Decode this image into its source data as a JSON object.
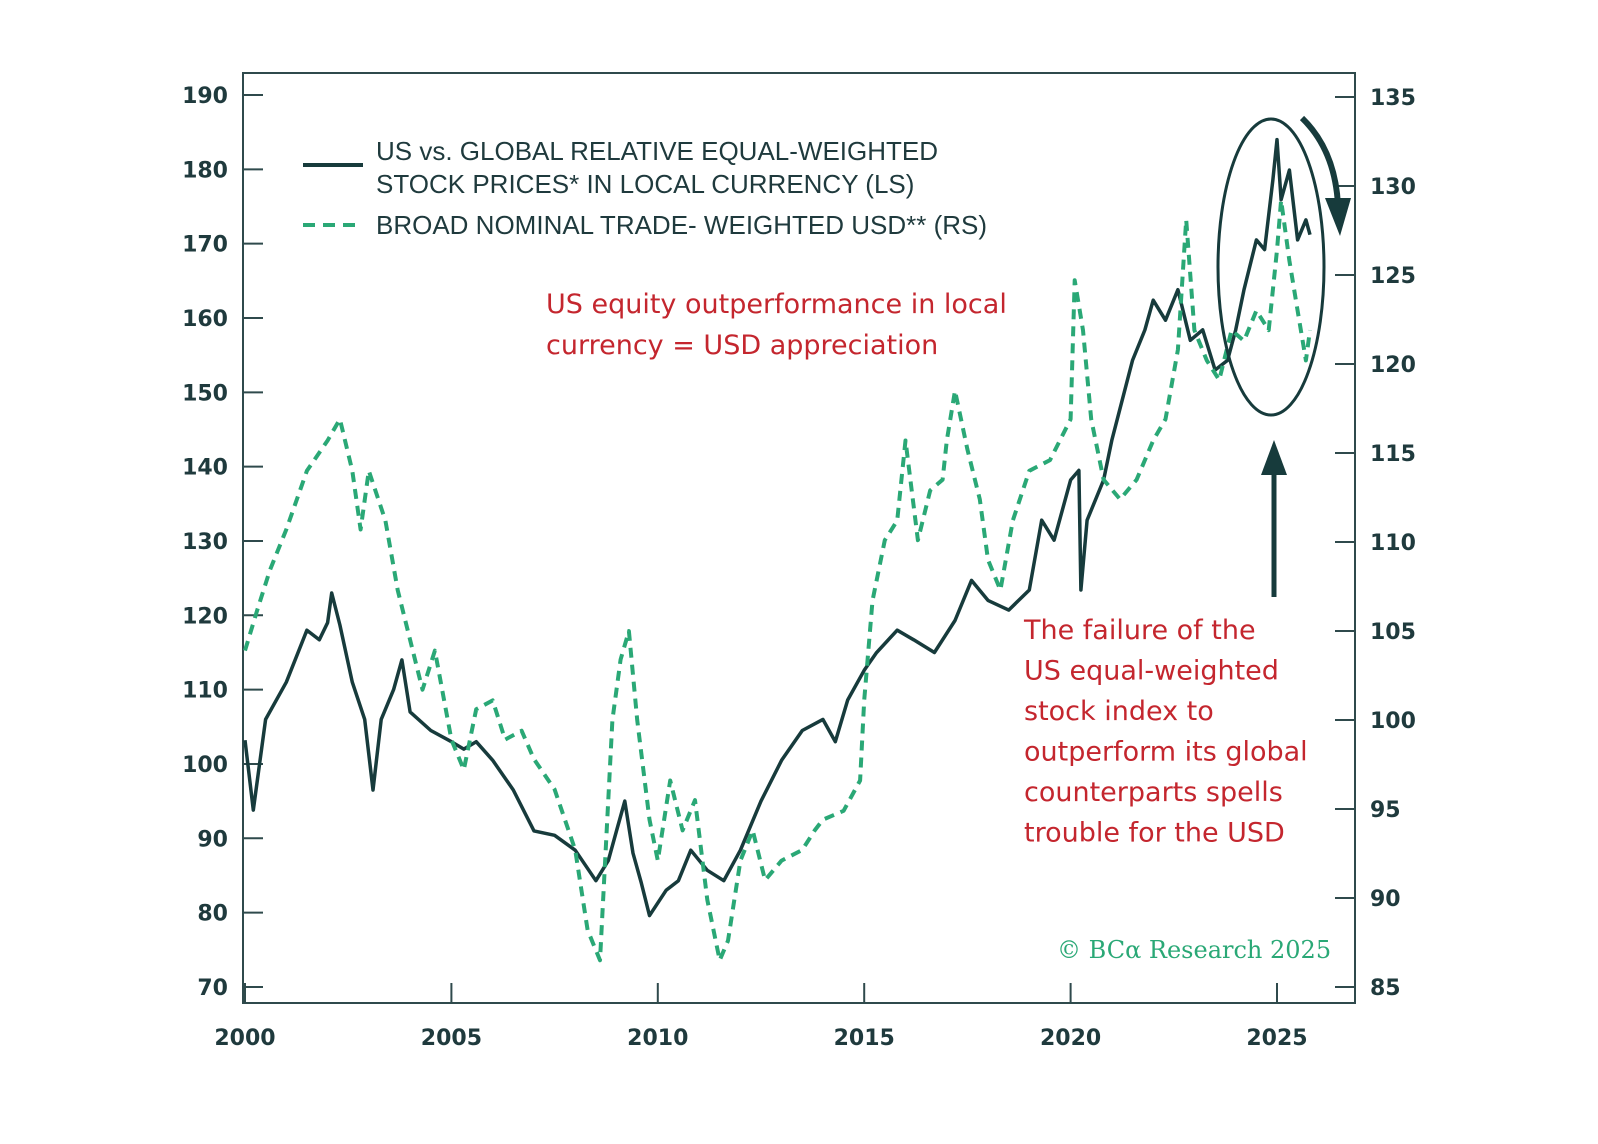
{
  "chart_data": {
    "type": "line",
    "title": "",
    "xlabel": "",
    "ylabel_left": "",
    "ylabel_right": "",
    "xlim": [
      2000,
      2026.9
    ],
    "ylim_left": [
      67,
      194
    ],
    "ylim_right": [
      83.5,
      135.8
    ],
    "x_ticks": [
      2000,
      2005,
      2010,
      2015,
      2020,
      2025
    ],
    "x_tick_labels": [
      "2000",
      "2005",
      "2010",
      "2015",
      "2020",
      "2025"
    ],
    "left_ticks": [
      70,
      80,
      90,
      100,
      110,
      120,
      130,
      140,
      150,
      160,
      170,
      180,
      190
    ],
    "left_tick_labels": [
      "70",
      "80",
      "90",
      "100",
      "110",
      "120",
      "130",
      "140",
      "150",
      "160",
      "170",
      "180",
      "190"
    ],
    "right_ticks": [
      85,
      90,
      95,
      100,
      105,
      110,
      115,
      120,
      125,
      130,
      135
    ],
    "right_tick_labels": [
      "85",
      "90",
      "95",
      "100",
      "105",
      "110",
      "115",
      "120",
      "125",
      "130",
      "135"
    ],
    "grid": false,
    "legend_placement": "top-left",
    "series": [
      {
        "name": "US vs. GLOBAL RELATIVE EQUAL-WEIGHTED STOCK PRICES* IN LOCAL CURRENCY (LS)",
        "legend_line1": "US vs. GLOBAL RELATIVE EQUAL-WEIGHTED",
        "legend_line2": "STOCK PRICES* IN LOCAL CURRENCY (LS)",
        "axis": "left",
        "style": "solid",
        "color": "#173b3c",
        "x": [
          2000.0,
          2000.2,
          2000.5,
          2001.0,
          2001.5,
          2001.8,
          2002.0,
          2002.1,
          2002.3,
          2002.6,
          2002.9,
          2003.1,
          2003.3,
          2003.6,
          2003.8,
          2004.0,
          2004.5,
          2005.0,
          2005.3,
          2005.6,
          2006.0,
          2006.5,
          2007.0,
          2007.5,
          2008.0,
          2008.5,
          2008.8,
          2009.0,
          2009.2,
          2009.4,
          2009.6,
          2009.8,
          2010.2,
          2010.5,
          2010.8,
          2011.2,
          2011.6,
          2012.0,
          2012.5,
          2013.0,
          2013.5,
          2014.0,
          2014.3,
          2014.6,
          2015.0,
          2015.3,
          2015.8,
          2016.2,
          2016.7,
          2017.2,
          2017.6,
          2018.0,
          2018.5,
          2019.0,
          2019.3,
          2019.6,
          2020.0,
          2020.2,
          2020.25,
          2020.4,
          2020.8,
          2021.0,
          2021.5,
          2021.8,
          2022.0,
          2022.3,
          2022.6,
          2022.9,
          2023.2,
          2023.5,
          2023.8,
          2024.0,
          2024.2,
          2024.5,
          2024.7,
          2024.9,
          2025.0,
          2025.1,
          2025.3,
          2025.5,
          2025.7,
          2025.8
        ],
        "y": [
          103.2,
          93.8,
          106,
          111,
          118,
          116.7,
          119,
          123,
          118.7,
          111,
          106,
          96.5,
          106,
          110,
          114,
          107,
          104.5,
          103,
          102,
          103,
          100.5,
          96.5,
          91,
          90.4,
          88.4,
          84.3,
          87,
          91,
          95,
          88,
          84,
          79.6,
          83,
          84.3,
          88.4,
          85.7,
          84.3,
          88.4,
          95,
          100.5,
          104.5,
          106,
          103,
          108.6,
          112.6,
          115,
          118,
          116.7,
          115,
          119.3,
          124.7,
          122,
          120.7,
          123.4,
          132.8,
          130.1,
          138.2,
          139.5,
          123.4,
          132.8,
          138.2,
          143.6,
          154.3,
          158.4,
          162.4,
          159.7,
          163.8,
          157,
          158.4,
          153,
          154.3,
          158.4,
          163.8,
          170.5,
          169.2,
          178.6,
          184,
          175.9,
          179.9,
          170.5,
          173.2,
          171.2
        ]
      },
      {
        "name": "BROAD NOMINAL TRADE- WEIGHTED USD** (RS)",
        "legend_line1": "BROAD NOMINAL TRADE- WEIGHTED USD** (RS)",
        "axis": "right",
        "style": "dashed",
        "color": "#2aa876",
        "x": [
          2000.0,
          2000.3,
          2000.6,
          2001.0,
          2001.5,
          2002.0,
          2002.3,
          2002.6,
          2002.8,
          2003.0,
          2003.4,
          2003.7,
          2004.0,
          2004.3,
          2004.6,
          2005.0,
          2005.3,
          2005.6,
          2006.0,
          2006.3,
          2006.7,
          2007.0,
          2007.5,
          2008.0,
          2008.3,
          2008.6,
          2008.9,
          2009.1,
          2009.3,
          2009.5,
          2009.8,
          2010.0,
          2010.3,
          2010.6,
          2010.9,
          2011.2,
          2011.5,
          2011.7,
          2012.0,
          2012.3,
          2012.6,
          2013.0,
          2013.5,
          2013.8,
          2014.0,
          2014.5,
          2014.9,
          2015.0,
          2015.2,
          2015.5,
          2015.8,
          2016.0,
          2016.3,
          2016.6,
          2016.9,
          2017.0,
          2017.2,
          2017.5,
          2017.8,
          2018.0,
          2018.3,
          2018.6,
          2019.0,
          2019.5,
          2020.0,
          2020.1,
          2020.3,
          2020.5,
          2020.8,
          2021.2,
          2021.6,
          2022.0,
          2022.3,
          2022.6,
          2022.8,
          2023.0,
          2023.3,
          2023.6,
          2023.9,
          2024.2,
          2024.5,
          2024.8,
          2025.0,
          2025.1,
          2025.3,
          2025.5,
          2025.7,
          2025.8
        ],
        "y": [
          103.9,
          106.2,
          108.4,
          110.7,
          114,
          115.7,
          116.9,
          114,
          110.7,
          114,
          111.2,
          107.3,
          104.5,
          101.7,
          103.9,
          98.9,
          97.2,
          100.6,
          101.1,
          98.9,
          99.4,
          97.8,
          96.1,
          92.7,
          88.2,
          86.5,
          100,
          103.4,
          105,
          100,
          94.4,
          92.1,
          96.6,
          93.8,
          95.5,
          89.9,
          86.5,
          87.6,
          92.1,
          93.8,
          91,
          92.1,
          92.7,
          93.8,
          94.4,
          94.9,
          96.6,
          101.1,
          106.7,
          110.1,
          111.2,
          115.7,
          110.1,
          112.9,
          113.5,
          115.7,
          118.5,
          115.2,
          112.4,
          109,
          107.3,
          111.2,
          114,
          114.6,
          116.9,
          124.7,
          121.9,
          116.9,
          113.5,
          112.4,
          113.5,
          115.7,
          116.9,
          120.8,
          128.1,
          121.9,
          120.2,
          119.1,
          121.9,
          121.3,
          123,
          121.9,
          126.4,
          129.2,
          125.8,
          123,
          120.2,
          121.9
        ]
      }
    ],
    "annotations": {
      "top_line1": "US equity outperformance in local",
      "top_line2": "currency = USD appreciation",
      "bottom_lines": [
        "The failure of the",
        "US equal-weighted",
        "stock index to",
        "outperform its global",
        "counterparts spells",
        "trouble for the USD"
      ],
      "copyright": "© BCα Research 2025",
      "annotation_color": "#c4262e"
    }
  }
}
